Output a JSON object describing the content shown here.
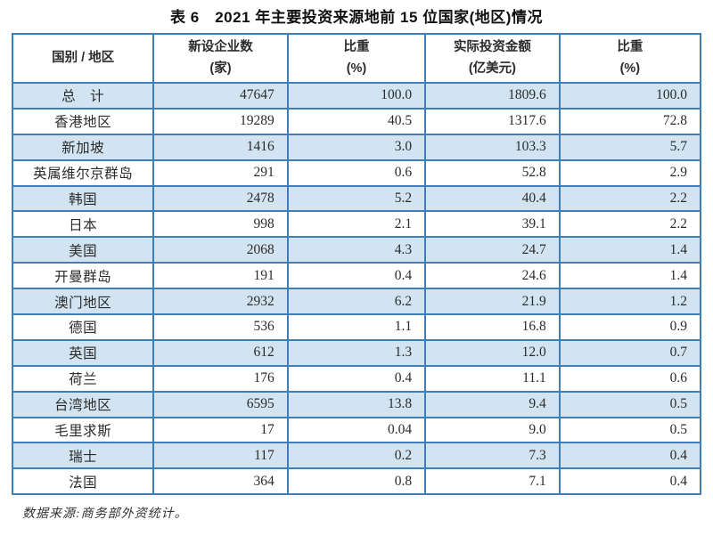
{
  "page": {
    "title": "表 6　2021 年主要投资来源地前 15 位国家(地区)情况",
    "source_note": "数据来源:商务部外资统计。"
  },
  "table": {
    "columns": [
      {
        "line1": "国别 / 地区",
        "line2": ""
      },
      {
        "line1": "新设企业数",
        "line2": "(家)"
      },
      {
        "line1": "比重",
        "line2": "(%)"
      },
      {
        "line1": "实际投资金额",
        "line2": "(亿美元)"
      },
      {
        "line1": "比重",
        "line2": "(%)"
      }
    ],
    "rows": [
      [
        "总　计",
        "47647",
        "100.0",
        "1809.6",
        "100.0"
      ],
      [
        "香港地区",
        "19289",
        "40.5",
        "1317.6",
        "72.8"
      ],
      [
        "新加坡",
        "1416",
        "3.0",
        "103.3",
        "5.7"
      ],
      [
        "英属维尔京群岛",
        "291",
        "0.6",
        "52.8",
        "2.9"
      ],
      [
        "韩国",
        "2478",
        "5.2",
        "40.4",
        "2.2"
      ],
      [
        "日本",
        "998",
        "2.1",
        "39.1",
        "2.2"
      ],
      [
        "美国",
        "2068",
        "4.3",
        "24.7",
        "1.4"
      ],
      [
        "开曼群岛",
        "191",
        "0.4",
        "24.6",
        "1.4"
      ],
      [
        "澳门地区",
        "2932",
        "6.2",
        "21.9",
        "1.2"
      ],
      [
        "德国",
        "536",
        "1.1",
        "16.8",
        "0.9"
      ],
      [
        "英国",
        "612",
        "1.3",
        "12.0",
        "0.7"
      ],
      [
        "荷兰",
        "176",
        "0.4",
        "11.1",
        "0.6"
      ],
      [
        "台湾地区",
        "6595",
        "13.8",
        "9.4",
        "0.5"
      ],
      [
        "毛里求斯",
        "17",
        "0.04",
        "9.0",
        "0.5"
      ],
      [
        "瑞士",
        "117",
        "0.2",
        "7.3",
        "0.4"
      ],
      [
        "法国",
        "364",
        "0.8",
        "7.1",
        "0.4"
      ]
    ]
  },
  "colors": {
    "border": "#3f7fb5",
    "row_alt_bg": "#d2e4f1",
    "row_bg": "#ffffff",
    "text": "#2b2b2b"
  }
}
